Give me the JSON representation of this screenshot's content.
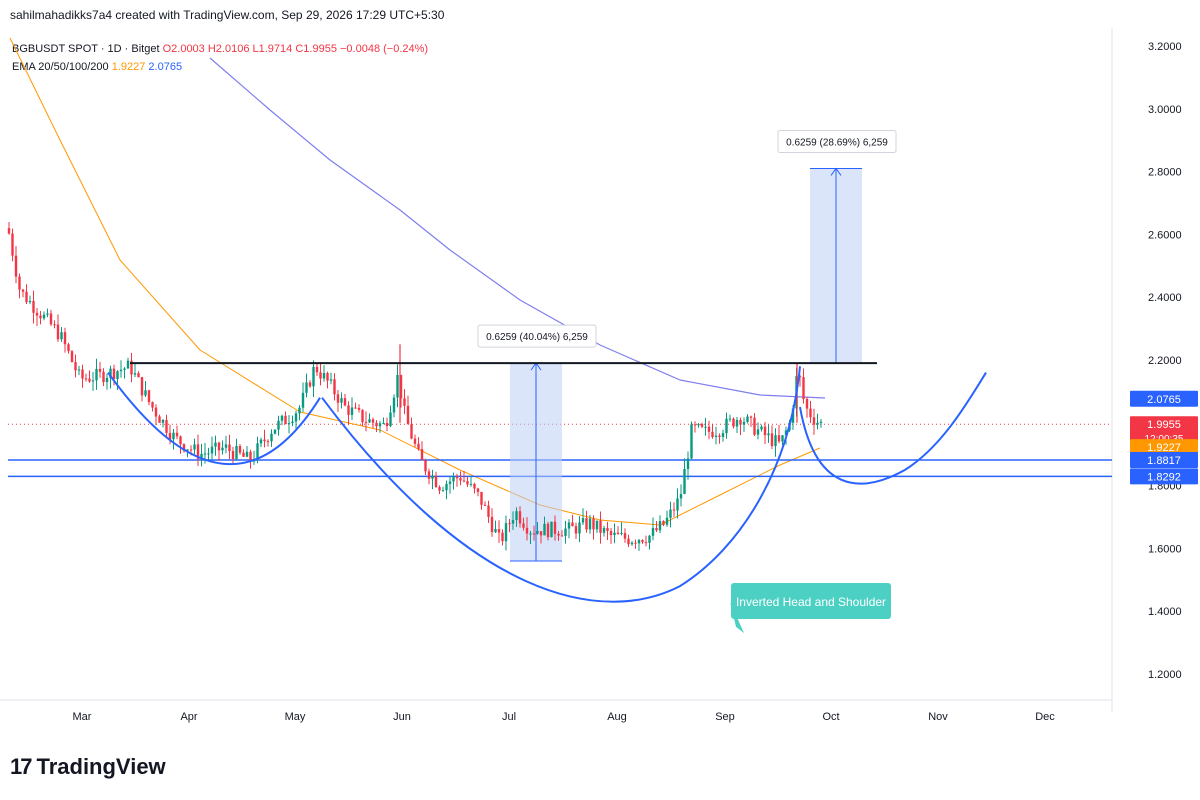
{
  "header": {
    "created_by": "sahilmahadikks7a4 created with TradingView.com, Sep 29, 2026 17:29 UTC+5:30"
  },
  "legend": {
    "symbol": "BGBUSDT SPOT · 1D · Bitget",
    "o": "O2.0003",
    "h": "H2.0106",
    "l": "L1.9714",
    "c": "C1.9955",
    "change": "−0.0048 (−0.24%)",
    "ema_label": "EMA 20/50/100/200",
    "ema1": "1.9227",
    "ema2": "2.0765"
  },
  "brand": {
    "logo_text": "17",
    "name": "TradingView"
  },
  "colors": {
    "up": "#089981",
    "down": "#f23645",
    "ema_orange": "#ff9800",
    "ema_blue": "#7e7ef0",
    "pattern_blue": "#2962ff",
    "box_fill": "#bbd0f4",
    "neckline": "#131722",
    "teal_label": "#4dd0c4"
  },
  "chart_data": {
    "type": "candlestick",
    "x_labels": [
      "Mar",
      "Apr",
      "May",
      "Jun",
      "Jul",
      "Aug",
      "Sep",
      "Oct",
      "Nov",
      "Dec"
    ],
    "y_ticks": [
      3.2,
      3.0,
      2.8,
      2.6,
      2.4,
      2.2,
      2.0,
      1.8,
      1.6,
      1.4,
      1.2
    ],
    "y_tick_labels": [
      "3.2000",
      "3.0000",
      "2.8000",
      "2.6000",
      "2.4000",
      "2.2000",
      "2.0000",
      "1.8000",
      "1.6000",
      "1.4000",
      "1.2000"
    ],
    "ylim": [
      1.12,
      3.27
    ],
    "price_tags": [
      {
        "label": "2.0765",
        "value": 2.0765,
        "color": "#2962ff"
      },
      {
        "label": "1.9955",
        "value": 1.9955,
        "color": "#f23645",
        "sub": "12:00:35"
      },
      {
        "label": "1.9227",
        "value": 1.9227,
        "color": "#ff9800"
      },
      {
        "label": "1.8817",
        "value": 1.8817,
        "color": "#2962ff"
      },
      {
        "label": "1.8292",
        "value": 1.8292,
        "color": "#2962ff"
      }
    ],
    "neckline": 2.19,
    "support_lines": [
      1.8817,
      1.8292
    ],
    "annotations": [
      {
        "text": "0.6259 (40.04%) 6,259",
        "from": 1.56,
        "to": 2.19
      },
      {
        "text": "0.6259 (28.69%) 6,259",
        "from": 2.19,
        "to": 2.81
      }
    ],
    "pattern_label": "Inverted Head and Shoulder",
    "series": [
      {
        "name": "EMA 20/50/100/200",
        "value": "1.9227"
      },
      {
        "name": "EMA 20/50/100/200",
        "value": "2.0765"
      }
    ]
  }
}
